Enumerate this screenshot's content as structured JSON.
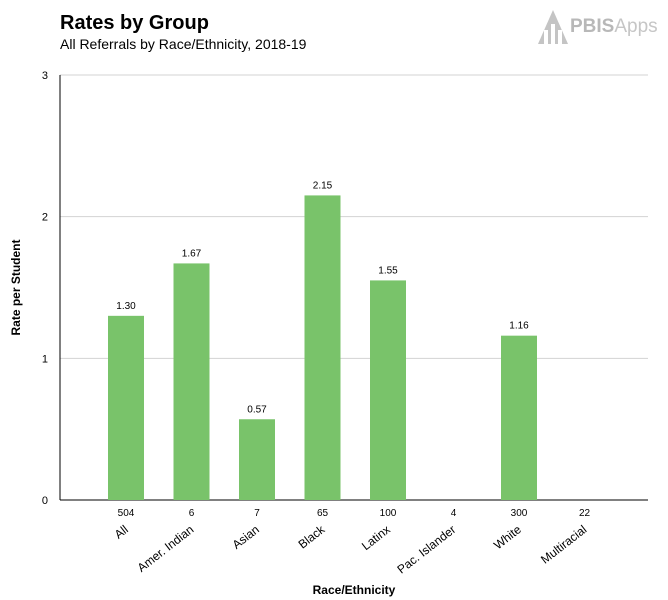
{
  "header": {
    "title": "Rates by Group",
    "subtitle": "All Referrals by Race/Ethnicity, 2018-19"
  },
  "logo": {
    "brand_bold": "PBIS",
    "brand_light": "Apps"
  },
  "colors": {
    "bar": "#79c36a",
    "grid": "#d3d3d3",
    "axis": "#000000"
  },
  "chart_data": {
    "type": "bar",
    "title": "Rates by Group",
    "subtitle": "All Referrals by Race/Ethnicity, 2018-19",
    "xlabel": "Race/Ethnicity",
    "ylabel": "Rate per Student",
    "ylim": [
      0,
      3
    ],
    "yticks": [
      0,
      1,
      2,
      3
    ],
    "grid": true,
    "categories": [
      "All",
      "Amer. Indian",
      "Asian",
      "Black",
      "Latinx",
      "Pac. Islander",
      "White",
      "Multiracial"
    ],
    "counts": [
      "504",
      "6",
      "7",
      "65",
      "100",
      "4",
      "300",
      "22"
    ],
    "values": [
      1.3,
      1.67,
      0.57,
      2.15,
      1.55,
      null,
      1.16,
      null
    ],
    "value_labels": [
      "1.30",
      "1.67",
      "0.57",
      "2.15",
      "1.55",
      "",
      "1.16",
      ""
    ]
  }
}
